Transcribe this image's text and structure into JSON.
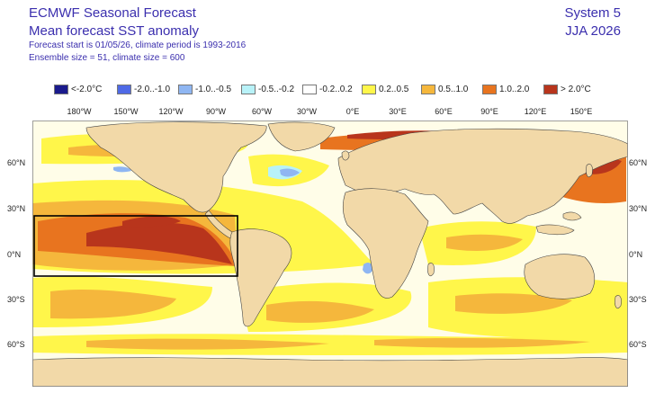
{
  "header": {
    "title": "ECMWF Seasonal Forecast",
    "subtitle": "Mean forecast SST anomaly",
    "info_line1": "Forecast start is 01/05/26, climate period is 1993-2016",
    "info_line2": "Ensemble size = 51, climate size = 600",
    "system": "System 5",
    "season": "JJA 2026"
  },
  "legend": [
    {
      "label": "<-2.0°C",
      "color": "#1a1a8c"
    },
    {
      "label": "-2.0..-1.0",
      "color": "#4f6ae6"
    },
    {
      "label": "-1.0..-0.5",
      "color": "#8fb6f2"
    },
    {
      "label": "-0.5..-0.2",
      "color": "#b8f2f8"
    },
    {
      "label": "-0.2..0.2",
      "color": "#ffffff"
    },
    {
      "label": "0.2..0.5",
      "color": "#fff64a"
    },
    {
      "label": "0.5..1.0",
      "color": "#f5b73c"
    },
    {
      "label": "1.0..2.0",
      "color": "#e8741f"
    },
    {
      "label": "> 2.0°C",
      "color": "#b8351c"
    }
  ],
  "axes": {
    "lon_labels": [
      "180°W",
      "150°W",
      "120°W",
      "90°W",
      "60°W",
      "30°W",
      "0°E",
      "30°E",
      "60°E",
      "90°E",
      "120°E",
      "150°E"
    ],
    "lat_labels_left": [
      "60°N",
      "30°N",
      "0°N",
      "30°S",
      "60°S"
    ],
    "lat_labels_right": [
      "60°N",
      "30°N",
      "0°N",
      "30°S",
      "60°S"
    ]
  },
  "colors": {
    "land": "#f2d9a8",
    "coast": "#444444",
    "box": "#000000"
  }
}
